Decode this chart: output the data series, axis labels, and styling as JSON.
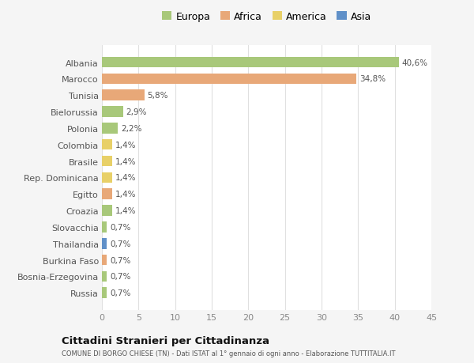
{
  "categories": [
    "Albania",
    "Marocco",
    "Tunisia",
    "Bielorussia",
    "Polonia",
    "Colombia",
    "Brasile",
    "Rep. Dominicana",
    "Egitto",
    "Croazia",
    "Slovacchia",
    "Thailandia",
    "Burkina Faso",
    "Bosnia-Erzegovina",
    "Russia"
  ],
  "values": [
    40.6,
    34.8,
    5.8,
    2.9,
    2.2,
    1.4,
    1.4,
    1.4,
    1.4,
    1.4,
    0.7,
    0.7,
    0.7,
    0.7,
    0.7
  ],
  "labels": [
    "40,6%",
    "34,8%",
    "5,8%",
    "2,9%",
    "2,2%",
    "1,4%",
    "1,4%",
    "1,4%",
    "1,4%",
    "1,4%",
    "0,7%",
    "0,7%",
    "0,7%",
    "0,7%",
    "0,7%"
  ],
  "continent": [
    "Europa",
    "Africa",
    "Africa",
    "Europa",
    "Europa",
    "America",
    "America",
    "America",
    "Africa",
    "Europa",
    "Europa",
    "Asia",
    "Africa",
    "Europa",
    "Europa"
  ],
  "colors": {
    "Europa": "#a8c87a",
    "Africa": "#e8a878",
    "America": "#e8d068",
    "Asia": "#6090c8"
  },
  "legend_labels": [
    "Europa",
    "Africa",
    "America",
    "Asia"
  ],
  "legend_colors": [
    "#a8c87a",
    "#e8a878",
    "#e8d068",
    "#6090c8"
  ],
  "title": "Cittadini Stranieri per Cittadinanza",
  "subtitle": "COMUNE DI BORGO CHIESE (TN) - Dati ISTAT al 1° gennaio di ogni anno - Elaborazione TUTTITALIA.IT",
  "xlim": [
    0,
    45
  ],
  "xticks": [
    0,
    5,
    10,
    15,
    20,
    25,
    30,
    35,
    40,
    45
  ],
  "background_color": "#f5f5f5",
  "bar_background": "#ffffff",
  "grid_color": "#e0e0e0"
}
